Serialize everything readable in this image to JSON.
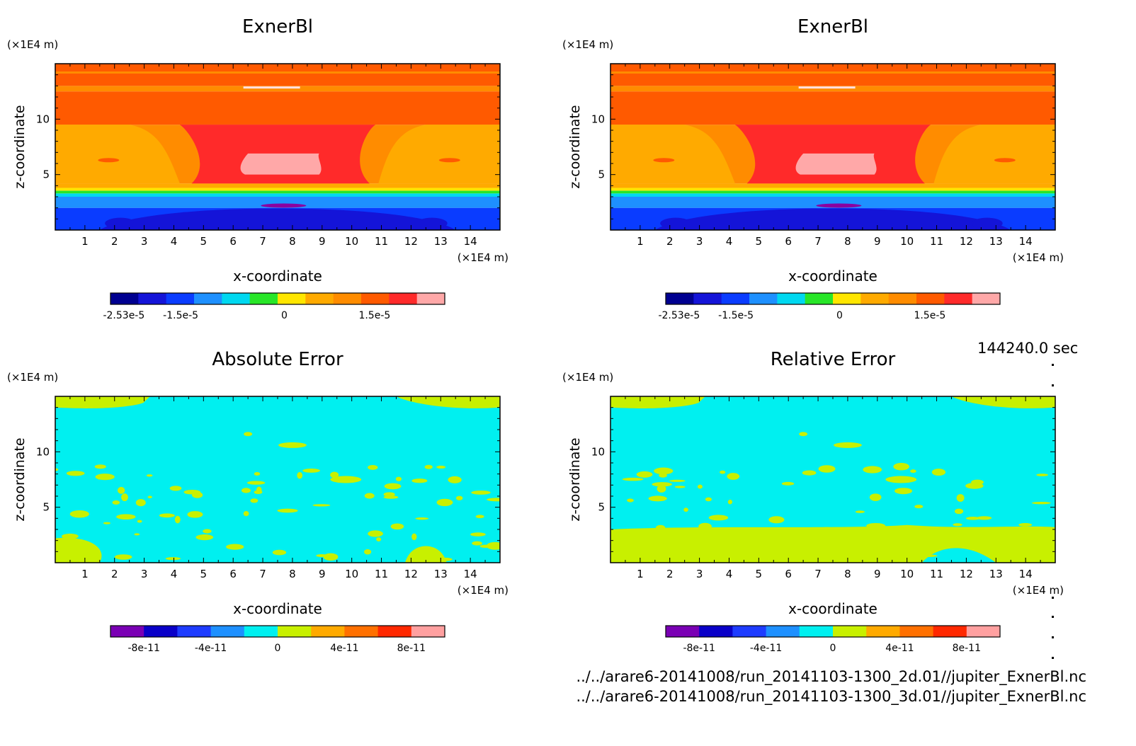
{
  "palette": {
    "exner": [
      "#000090",
      "#1414d8",
      "#0a3cff",
      "#1e90ff",
      "#00d8f0",
      "#28e628",
      "#ffe600",
      "#ffaa00",
      "#ff8c00",
      "#ff5a00",
      "#ff2a2a",
      "#ffa8a8"
    ],
    "error": [
      "#7a00b4",
      "#0a00c8",
      "#1e3cff",
      "#1e90ff",
      "#00f0f0",
      "#c8f000",
      "#ffaa00",
      "#ff7000",
      "#ff2800",
      "#ffa0a0"
    ]
  },
  "timestamp": "144240.0 sec",
  "footer": {
    "line1": "../../arare6-20141008/run_20141103-1300_2d.01//jupiter_ExnerBl.nc",
    "line2": "../../arare6-20141008/run_20141103-1300_3d.01//jupiter_ExnerBl.nc"
  },
  "chart_data": [
    {
      "type": "heatmap",
      "title": "ExnerBl",
      "xlabel": "x-coordinate",
      "ylabel": "z-coordinate",
      "x_unit": "(×1E4 m)",
      "y_unit": "(×1E4 m)",
      "xlim": [
        0,
        15
      ],
      "ylim": [
        0,
        15
      ],
      "x_ticks": [
        1,
        2,
        3,
        4,
        5,
        6,
        7,
        8,
        9,
        10,
        11,
        12,
        13,
        14
      ],
      "y_ticks": [
        5,
        10
      ],
      "colorbar_labels": [
        "-2.53e-5",
        "-1.5e-5",
        "0",
        "1.5e-5"
      ],
      "colorbar_label_fracs": [
        0.04,
        0.21,
        0.52,
        0.79
      ]
    },
    {
      "type": "heatmap",
      "title": "ExnerBl",
      "xlabel": "x-coordinate",
      "ylabel": "z-coordinate",
      "x_unit": "(×1E4 m)",
      "y_unit": "(×1E4 m)",
      "xlim": [
        0,
        15
      ],
      "ylim": [
        0,
        15
      ],
      "x_ticks": [
        1,
        2,
        3,
        4,
        5,
        6,
        7,
        8,
        9,
        10,
        11,
        12,
        13,
        14
      ],
      "y_ticks": [
        5,
        10
      ],
      "colorbar_labels": [
        "-2.53e-5",
        "-1.5e-5",
        "0",
        "1.5e-5"
      ],
      "colorbar_label_fracs": [
        0.04,
        0.21,
        0.52,
        0.79
      ]
    },
    {
      "type": "heatmap",
      "title": "Absolute Error",
      "xlabel": "x-coordinate",
      "ylabel": "z-coordinate",
      "x_unit": "(×1E4 m)",
      "y_unit": "(×1E4 m)",
      "xlim": [
        0,
        15
      ],
      "ylim": [
        0,
        15
      ],
      "x_ticks": [
        1,
        2,
        3,
        4,
        5,
        6,
        7,
        8,
        9,
        10,
        11,
        12,
        13,
        14
      ],
      "y_ticks": [
        5,
        10
      ],
      "colorbar_labels": [
        "-8e-11",
        "-4e-11",
        "0",
        "4e-11",
        "8e-11"
      ],
      "colorbar_label_fracs": [
        0.1,
        0.3,
        0.5,
        0.7,
        0.9
      ]
    },
    {
      "type": "heatmap",
      "title": "Relative Error",
      "xlabel": "x-coordinate",
      "ylabel": "z-coordinate",
      "x_unit": "(×1E4 m)",
      "y_unit": "(×1E4 m)",
      "xlim": [
        0,
        15
      ],
      "ylim": [
        0,
        15
      ],
      "x_ticks": [
        1,
        2,
        3,
        4,
        5,
        6,
        7,
        8,
        9,
        10,
        11,
        12,
        13,
        14
      ],
      "y_ticks": [
        5,
        10
      ],
      "colorbar_labels": [
        "-8e-11",
        "-4e-11",
        "0",
        "4e-11",
        "8e-11"
      ],
      "colorbar_label_fracs": [
        0.1,
        0.3,
        0.5,
        0.7,
        0.9
      ]
    }
  ]
}
